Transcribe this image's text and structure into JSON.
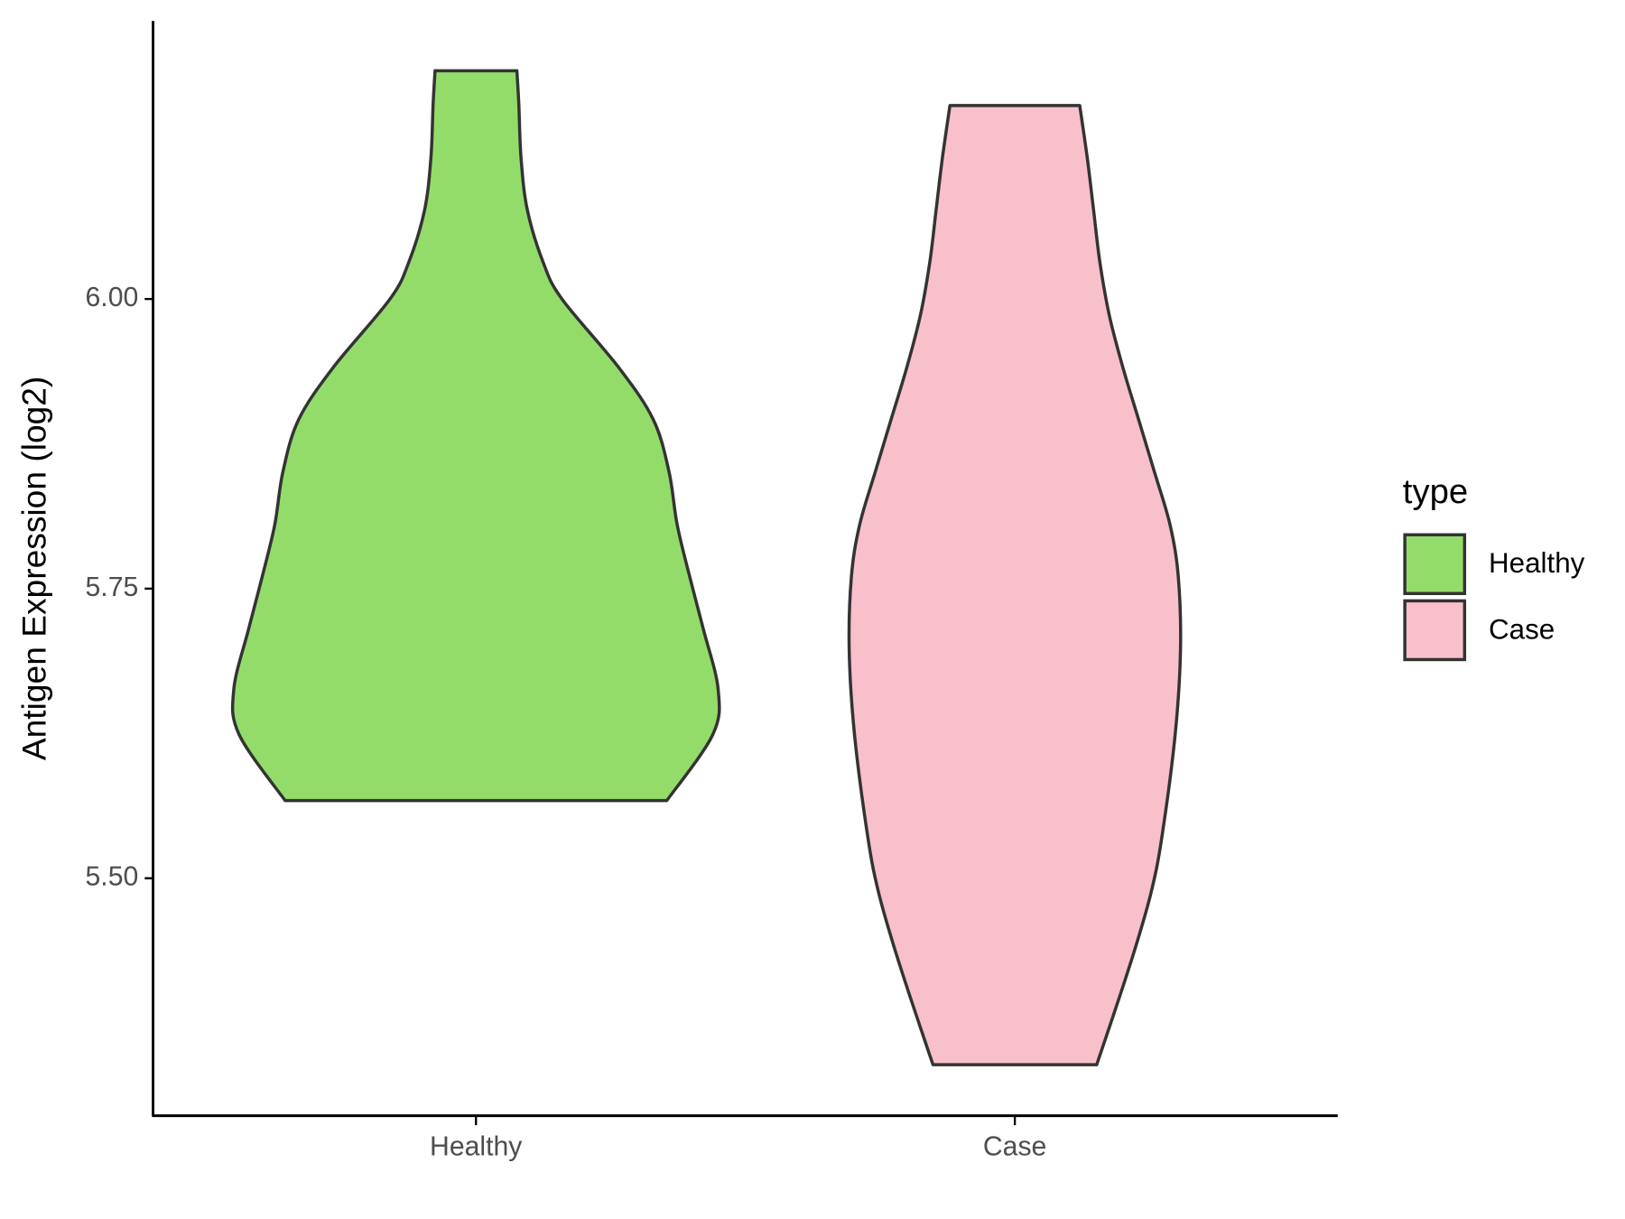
{
  "chart_data": {
    "type": "violin",
    "y_label": "Antigen Expression (log2)",
    "categories": [
      "Healthy",
      "Case"
    ],
    "legend_title": "type",
    "legend_position": "right",
    "ylim": [
      5.295,
      6.24
    ],
    "yticks": [
      {
        "value": 5.5,
        "label": "5.50"
      },
      {
        "value": 5.75,
        "label": "5.75"
      },
      {
        "value": 6.0,
        "label": "6.00"
      }
    ],
    "grid": false,
    "series": [
      {
        "name": "Healthy",
        "color": "#94dc6a",
        "y": [
          6.197,
          6.168,
          6.122,
          6.077,
          6.032,
          6.0,
          5.941,
          5.896,
          5.851,
          5.805,
          5.76,
          5.715,
          5.663,
          5.624,
          5.567
        ],
        "density": [
          0.169,
          0.177,
          0.186,
          0.212,
          0.277,
          0.355,
          0.589,
          0.732,
          0.797,
          0.831,
          0.883,
          0.939,
          1.0,
          0.978,
          0.788
        ]
      },
      {
        "name": "Case",
        "color": "#f8c0cb",
        "y": [
          6.167,
          6.122,
          6.077,
          6.032,
          5.986,
          5.941,
          5.896,
          5.851,
          5.805,
          5.76,
          5.697,
          5.624,
          5.534,
          5.488,
          5.443,
          5.398,
          5.339
        ],
        "density": [
          0.268,
          0.299,
          0.325,
          0.351,
          0.39,
          0.446,
          0.511,
          0.576,
          0.641,
          0.675,
          0.684,
          0.662,
          0.606,
          0.563,
          0.502,
          0.433,
          0.338
        ]
      }
    ]
  }
}
